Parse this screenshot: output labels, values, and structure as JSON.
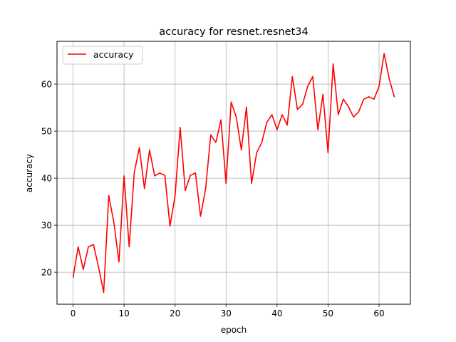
{
  "chart_data": {
    "type": "line",
    "title": "accuracy for resnet.resnet34",
    "xlabel": "epoch",
    "ylabel": "accuracy",
    "xlim": [
      -3.15,
      66.15
    ],
    "ylim": [
      13.2,
      69.1
    ],
    "xticks": [
      0,
      10,
      20,
      30,
      40,
      50,
      60
    ],
    "yticks": [
      20,
      30,
      40,
      50,
      60
    ],
    "grid": true,
    "legend_position": "top-left",
    "series": [
      {
        "name": "accuracy",
        "color": "#ff0000",
        "x": [
          0,
          1,
          2,
          3,
          4,
          5,
          6,
          7,
          8,
          9,
          10,
          11,
          12,
          13,
          14,
          15,
          16,
          17,
          18,
          19,
          20,
          21,
          22,
          23,
          24,
          25,
          26,
          27,
          28,
          29,
          30,
          31,
          32,
          33,
          34,
          35,
          36,
          37,
          38,
          39,
          40,
          41,
          42,
          43,
          44,
          45,
          46,
          47,
          48,
          49,
          50,
          51,
          52,
          53,
          54,
          55,
          56,
          57,
          58,
          59,
          60,
          61,
          62,
          63
        ],
        "values": [
          18.9,
          25.4,
          20.6,
          25.4,
          25.9,
          21.1,
          15.7,
          36.3,
          30.6,
          22.2,
          40.5,
          25.4,
          41.2,
          46.5,
          37.8,
          46.0,
          40.5,
          41.1,
          40.6,
          29.8,
          36.2,
          50.8,
          37.4,
          40.6,
          41.1,
          31.9,
          37.8,
          49.2,
          47.6,
          52.4,
          38.9,
          56.2,
          53.0,
          46.0,
          55.1,
          38.9,
          45.4,
          47.6,
          51.9,
          53.5,
          50.3,
          53.5,
          51.3,
          61.6,
          54.6,
          55.7,
          59.5,
          61.6,
          50.3,
          57.8,
          45.4,
          64.3,
          53.5,
          56.8,
          55.2,
          53.0,
          54.1,
          56.8,
          57.3,
          56.8,
          59.5,
          66.5,
          61.1,
          57.3
        ]
      }
    ]
  }
}
